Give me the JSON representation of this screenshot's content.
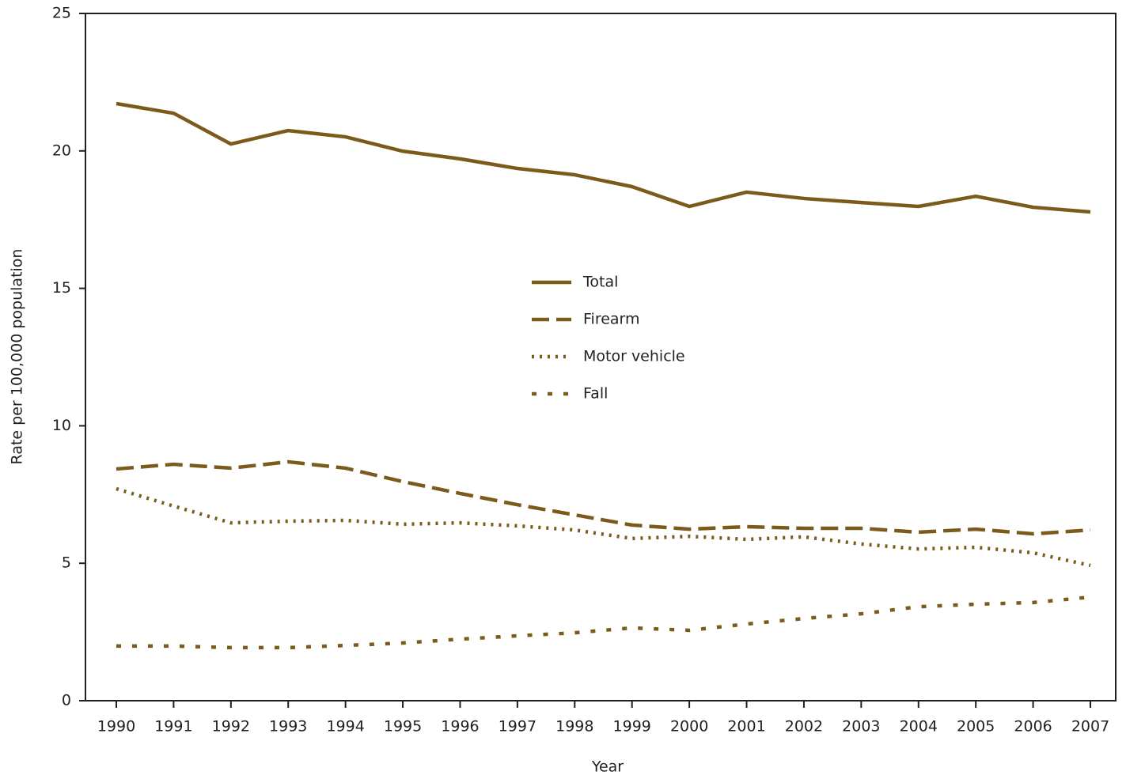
{
  "chart_data": {
    "type": "line",
    "x_label": "Year",
    "y_label": "Rate per 100,000 population",
    "categories": [
      "1990",
      "1991",
      "1992",
      "1993",
      "1994",
      "1995",
      "1996",
      "1997",
      "1998",
      "1999",
      "2000",
      "2001",
      "2002",
      "2003",
      "2004",
      "2005",
      "2006",
      "2007"
    ],
    "series": [
      {
        "name": "Total",
        "color": "#7b5a1c",
        "style": "solid",
        "values": [
          21.72,
          21.37,
          20.25,
          20.74,
          20.51,
          19.99,
          19.71,
          19.36,
          19.13,
          18.7,
          17.98,
          18.5,
          18.27,
          18.12,
          17.98,
          18.35,
          17.95,
          17.78
        ]
      },
      {
        "name": "Firearm",
        "color": "#7b5a1c",
        "style": "dashed",
        "values": [
          8.43,
          8.6,
          8.46,
          8.69,
          8.46,
          7.97,
          7.54,
          7.13,
          6.76,
          6.39,
          6.24,
          6.33,
          6.27,
          6.27,
          6.13,
          6.24,
          6.07,
          6.21
        ]
      },
      {
        "name": "Motor vehicle",
        "color": "#7b5a1c",
        "style": "dotted",
        "values": [
          7.71,
          7.08,
          6.47,
          6.53,
          6.56,
          6.42,
          6.47,
          6.36,
          6.21,
          5.9,
          5.98,
          5.87,
          5.96,
          5.7,
          5.52,
          5.58,
          5.38,
          4.92
        ]
      },
      {
        "name": "Fall",
        "color": "#7b5a1c",
        "style": "dotted-wide",
        "values": [
          1.99,
          1.99,
          1.93,
          1.93,
          2.01,
          2.1,
          2.24,
          2.36,
          2.47,
          2.65,
          2.56,
          2.79,
          2.99,
          3.16,
          3.42,
          3.51,
          3.57,
          3.77
        ]
      }
    ],
    "ylim": [
      0,
      25
    ],
    "yticks": [
      0,
      5,
      10,
      15,
      20,
      25
    ]
  }
}
